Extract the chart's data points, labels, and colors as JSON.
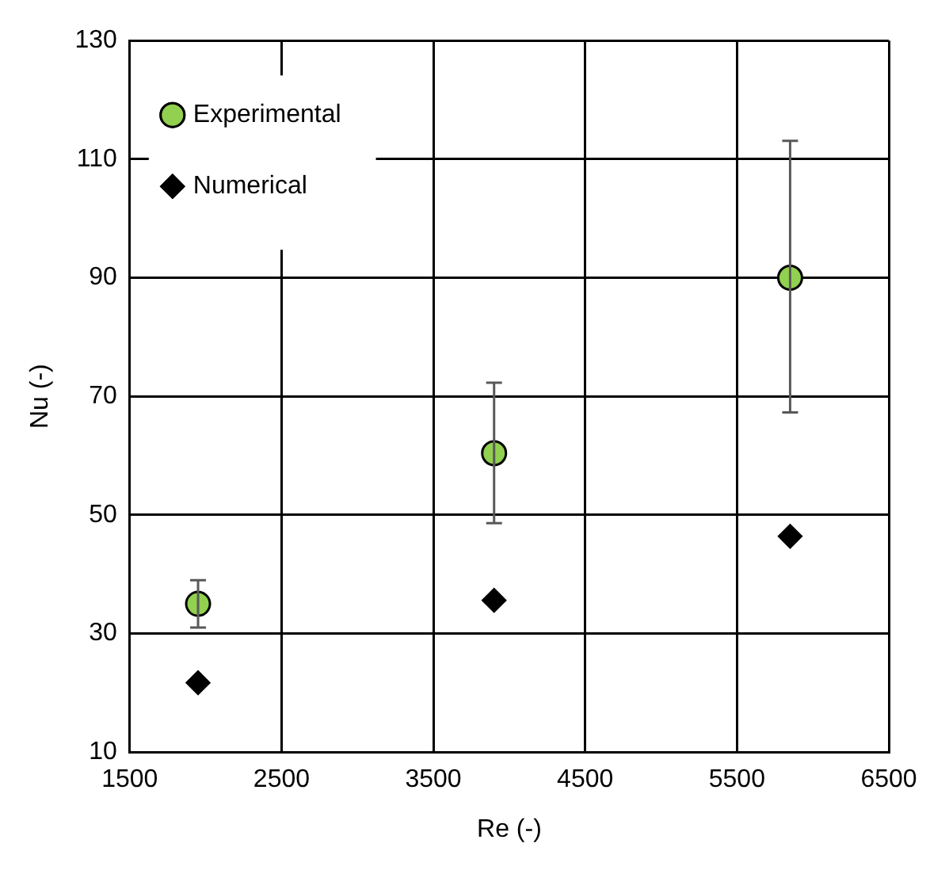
{
  "chart_data": {
    "type": "scatter",
    "xlabel": "Re (-)",
    "ylabel": "Nu (-)",
    "xlim": [
      1500,
      6500
    ],
    "xticks": [
      1500,
      2500,
      3500,
      4500,
      5500,
      6500
    ],
    "ylim": [
      10,
      130
    ],
    "yticks": [
      10,
      30,
      50,
      70,
      90,
      110,
      130
    ],
    "grid": true,
    "legend": "top left",
    "series": [
      {
        "name": "Experimental",
        "color": "#92d050",
        "marker": "circle",
        "x": [
          1950,
          3900,
          5850
        ],
        "values": [
          35,
          60.4,
          90
        ],
        "errors": [
          [
            31,
            39
          ],
          [
            48.6,
            72.3
          ],
          [
            67.3,
            113.1
          ]
        ]
      },
      {
        "name": "Numerical",
        "color": "#000000",
        "marker": "diamond",
        "x": [
          1950,
          3900,
          5850
        ],
        "values": [
          21.7,
          35.6,
          46.4
        ]
      }
    ]
  }
}
